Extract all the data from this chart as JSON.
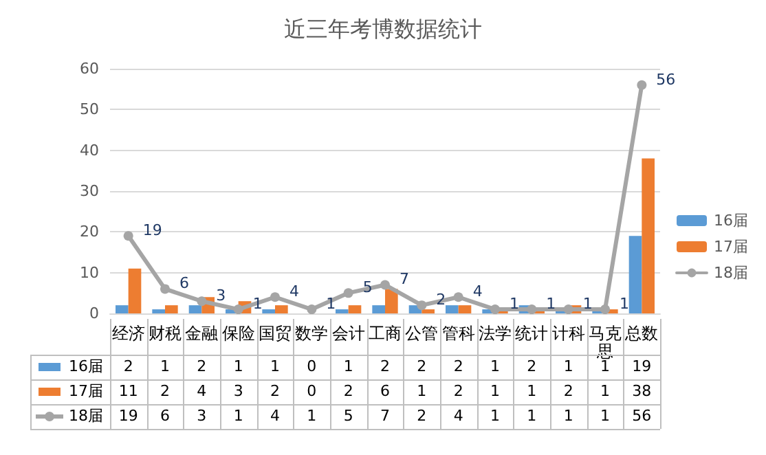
{
  "chart_data": {
    "type": "bar",
    "title": "近三年考博数据统计",
    "categories": [
      "经济",
      "财税",
      "金融",
      "保险",
      "国贸",
      "数学",
      "会计",
      "工商",
      "公管",
      "管科",
      "法学",
      "统计",
      "计科",
      "马克思",
      "总数"
    ],
    "series": [
      {
        "name": "16届",
        "color": "#5b9bd5",
        "values": [
          2,
          1,
          2,
          1,
          1,
          0,
          1,
          2,
          2,
          2,
          1,
          2,
          1,
          1,
          19
        ],
        "value_labels": [
          "2",
          "1",
          "2",
          "1",
          "1",
          "0",
          "1",
          "2",
          "2",
          "2",
          "1",
          "2",
          "1",
          "1",
          "19"
        ]
      },
      {
        "name": "17届",
        "color": "#ed7d31",
        "values": [
          11,
          2,
          4,
          3,
          2,
          0,
          2,
          6,
          1,
          2,
          1,
          1,
          2,
          1,
          38
        ],
        "value_labels": [
          "11",
          "2",
          "4",
          "3",
          "2",
          "0",
          "2",
          "6",
          "1",
          "2",
          "1",
          "1",
          "2",
          "1",
          "38"
        ]
      },
      {
        "name": "18届",
        "type": "line",
        "color": "#a5a5a5",
        "values": [
          19,
          6,
          3,
          1,
          4,
          1,
          5,
          7,
          2,
          4,
          1,
          1,
          1,
          1,
          56
        ],
        "value_labels": [
          "19",
          "6",
          "3",
          "1",
          "4",
          "1",
          "5",
          "7",
          "2",
          "4",
          "1",
          "1",
          "1",
          "1",
          "56"
        ]
      }
    ],
    "ylim": [
      0,
      60
    ],
    "yticks": [
      0,
      10,
      20,
      30,
      40,
      50,
      60
    ],
    "grid": "y",
    "legend": "right",
    "marker": "circle",
    "line_style": "solid",
    "data_labels": true
  }
}
